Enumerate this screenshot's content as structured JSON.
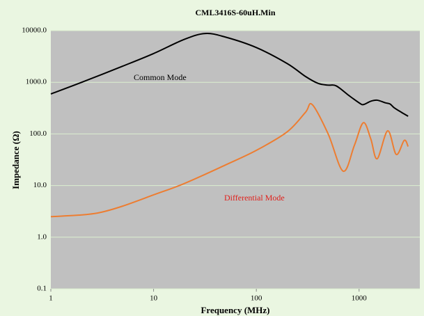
{
  "chart_data": {
    "type": "line",
    "title": "CML3416S-60uH.Min",
    "x_label": "Frequency (MHz)",
    "y_label": "Impedance (Ω)",
    "x_log": true,
    "y_log": true,
    "grid": true,
    "xlim": [
      1,
      3900
    ],
    "ylim": [
      0.1,
      10000
    ],
    "xticks": [
      1,
      10,
      100,
      1000
    ],
    "yticks": [
      {
        "value": 0.1,
        "label": "0.1"
      },
      {
        "value": 1,
        "label": "1.0"
      },
      {
        "value": 10,
        "label": "10.0"
      },
      {
        "value": 100,
        "label": "100.0"
      },
      {
        "value": 1000,
        "label": "1000.0"
      },
      {
        "value": 10000,
        "label": "10000.0"
      }
    ],
    "series": [
      {
        "name": "Common Mode",
        "color": "#000000",
        "x": [
          1,
          2,
          5,
          10,
          20,
          32,
          50,
          100,
          200,
          300,
          400,
          500,
          600,
          800,
          1000,
          1100,
          1300,
          1500,
          1800,
          2000,
          2200,
          2600,
          3000
        ],
        "values": [
          594,
          1000,
          2050,
          3600,
          6800,
          8800,
          7500,
          4700,
          2300,
          1300,
          950,
          880,
          850,
          550,
          400,
          370,
          430,
          450,
          400,
          380,
          320,
          260,
          220
        ]
      },
      {
        "name": "Differential Mode",
        "color": "#ed7d31",
        "x": [
          1,
          2,
          3,
          5,
          10,
          20,
          50,
          100,
          200,
          300,
          350,
          500,
          700,
          900,
          1100,
          1300,
          1500,
          1900,
          2300,
          2750,
          3000
        ],
        "values": [
          2.5,
          2.7,
          3.0,
          4.0,
          6.6,
          11,
          25,
          48,
          110,
          260,
          370,
          100,
          19,
          60,
          165,
          80,
          33,
          115,
          40,
          75,
          57
        ]
      }
    ]
  }
}
